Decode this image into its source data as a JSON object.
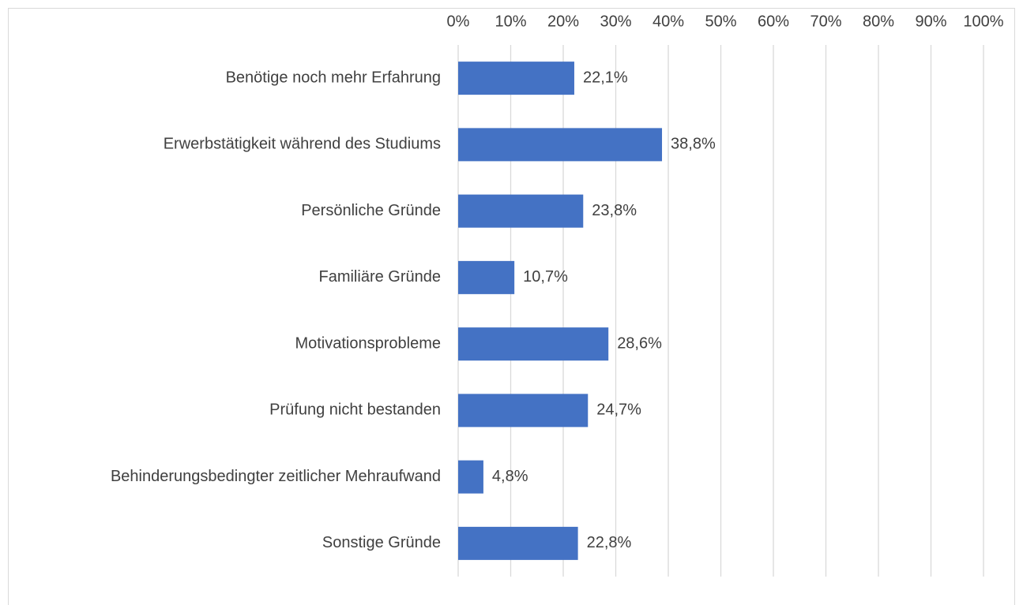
{
  "chart_data": {
    "type": "hbar",
    "categories": [
      "Benötige noch mehr Erfahrung",
      "Erwerbstätigkeit während des Studiums",
      "Persönliche Gründe",
      "Familiäre Gründe",
      "Motivationsprobleme",
      "Prüfung nicht bestanden",
      "Behinderungsbedingter zeitlicher Mehraufwand",
      "Sonstige Gründe"
    ],
    "values": [
      22.1,
      38.8,
      23.8,
      10.7,
      28.6,
      24.7,
      4.8,
      22.8
    ],
    "value_labels": [
      "22,1%",
      "38,8%",
      "23,8%",
      "10,7%",
      "28,6%",
      "24,7%",
      "4,8%",
      "22,8%"
    ],
    "color": "#4472c4",
    "xlim": [
      0,
      100
    ],
    "xticks": [
      {
        "value": 0,
        "label": "0%"
      },
      {
        "value": 10,
        "label": "10%"
      },
      {
        "value": 20,
        "label": "20%"
      },
      {
        "value": 30,
        "label": "30%"
      },
      {
        "value": 40,
        "label": "40%"
      },
      {
        "value": 50,
        "label": "50%"
      },
      {
        "value": 60,
        "label": "60%"
      },
      {
        "value": 70,
        "label": "70%"
      },
      {
        "value": 80,
        "label": "80%"
      },
      {
        "value": 90,
        "label": "90%"
      },
      {
        "value": 100,
        "label": "100%"
      }
    ],
    "grid": true
  }
}
